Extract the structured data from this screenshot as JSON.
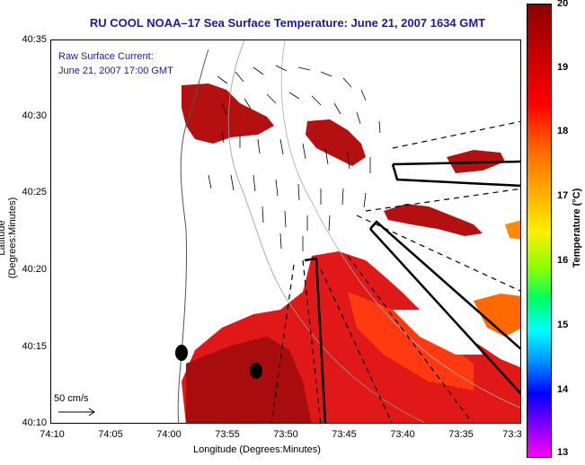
{
  "title": "RU COOL  NOAA–17  Sea Surface Temperature:  June 21, 2007 1634 GMT",
  "annotation": {
    "line1": "Raw Surface Current:",
    "line2": "June 21, 2007 17:00 GMT"
  },
  "scale_label": "50 cm/s",
  "axes": {
    "xlabel": "Longitude (Degrees:Minutes)",
    "ylabel": "Latitude (Degrees:Minutes)",
    "xticks": [
      "74:10",
      "74:05",
      "74:00",
      "73:55",
      "73:50",
      "73:45",
      "73:40",
      "73:35",
      "73:3"
    ],
    "yticks": [
      "40:35",
      "40:30",
      "40:25",
      "40:20",
      "40:15",
      "40:10"
    ]
  },
  "colorbar": {
    "title": "Temperature (°C)",
    "ticks": [
      "20",
      "19",
      "18",
      "17",
      "16",
      "15",
      "14",
      "13"
    ],
    "colors": {
      "max": "#8b0000",
      "min": "#ff00ff"
    }
  }
}
